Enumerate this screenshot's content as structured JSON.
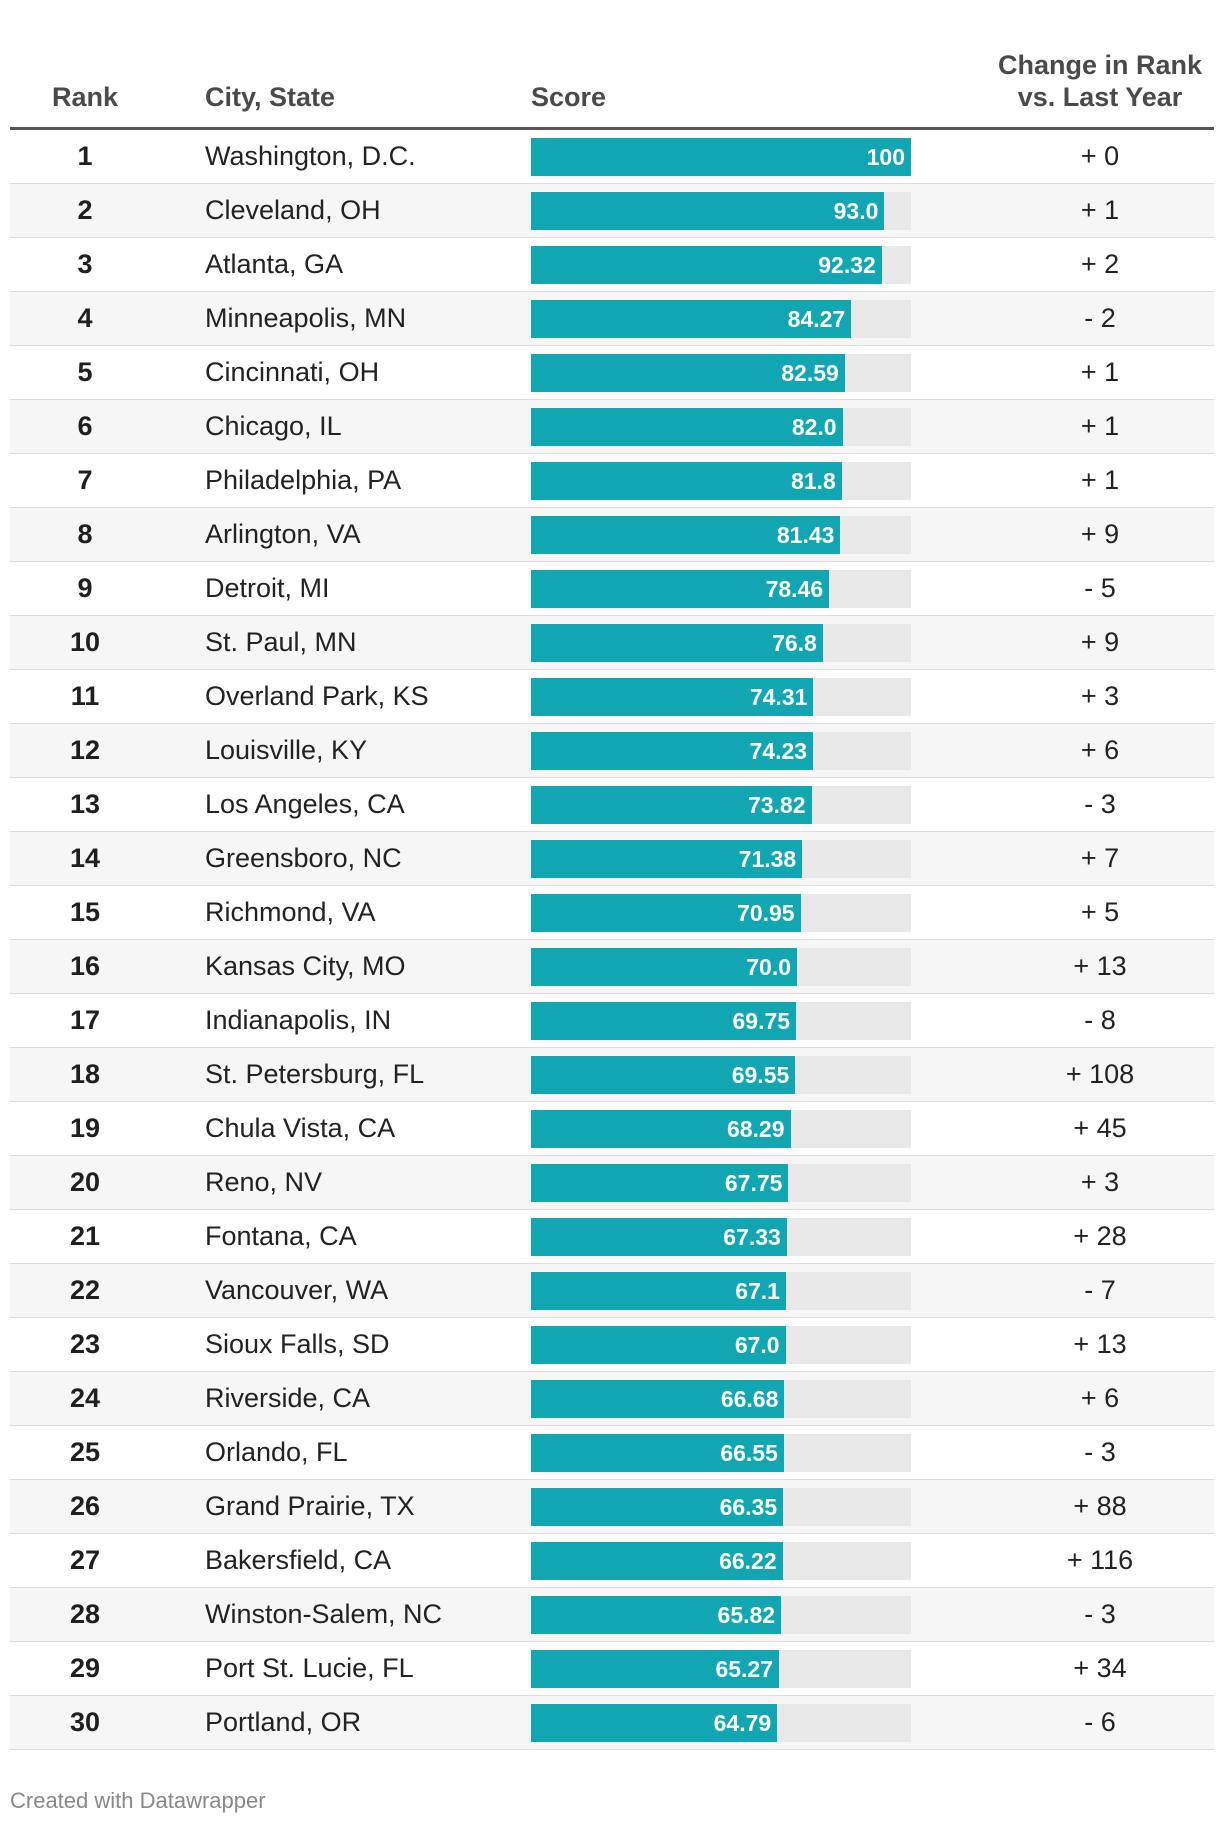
{
  "chart_data": {
    "type": "table",
    "headers": {
      "rank": "Rank",
      "city": "City, State",
      "score": "Score",
      "change": "Change in Rank\nvs. Last Year"
    },
    "score_max": 100,
    "bar_color": "#12a5b2",
    "track_color": "#e8e8e8",
    "rows": [
      {
        "rank": "1",
        "city": "Washington, D.C.",
        "score": 100,
        "score_label": "100",
        "change": "+ 0"
      },
      {
        "rank": "2",
        "city": "Cleveland, OH",
        "score": 93.0,
        "score_label": "93.0",
        "change": "+ 1"
      },
      {
        "rank": "3",
        "city": "Atlanta, GA",
        "score": 92.32,
        "score_label": "92.32",
        "change": "+ 2"
      },
      {
        "rank": "4",
        "city": "Minneapolis, MN",
        "score": 84.27,
        "score_label": "84.27",
        "change": "- 2"
      },
      {
        "rank": "5",
        "city": "Cincinnati, OH",
        "score": 82.59,
        "score_label": "82.59",
        "change": "+ 1"
      },
      {
        "rank": "6",
        "city": "Chicago, IL",
        "score": 82.0,
        "score_label": "82.0",
        "change": "+ 1"
      },
      {
        "rank": "7",
        "city": "Philadelphia, PA",
        "score": 81.8,
        "score_label": "81.8",
        "change": "+ 1"
      },
      {
        "rank": "8",
        "city": "Arlington, VA",
        "score": 81.43,
        "score_label": "81.43",
        "change": "+ 9"
      },
      {
        "rank": "9",
        "city": "Detroit, MI",
        "score": 78.46,
        "score_label": "78.46",
        "change": "- 5"
      },
      {
        "rank": "10",
        "city": "St. Paul, MN",
        "score": 76.8,
        "score_label": "76.8",
        "change": "+ 9"
      },
      {
        "rank": "11",
        "city": "Overland Park, KS",
        "score": 74.31,
        "score_label": "74.31",
        "change": "+ 3"
      },
      {
        "rank": "12",
        "city": "Louisville, KY",
        "score": 74.23,
        "score_label": "74.23",
        "change": "+ 6"
      },
      {
        "rank": "13",
        "city": "Los Angeles, CA",
        "score": 73.82,
        "score_label": "73.82",
        "change": "- 3"
      },
      {
        "rank": "14",
        "city": "Greensboro, NC",
        "score": 71.38,
        "score_label": "71.38",
        "change": "+ 7"
      },
      {
        "rank": "15",
        "city": "Richmond, VA",
        "score": 70.95,
        "score_label": "70.95",
        "change": "+ 5"
      },
      {
        "rank": "16",
        "city": "Kansas City, MO",
        "score": 70.0,
        "score_label": "70.0",
        "change": "+ 13"
      },
      {
        "rank": "17",
        "city": "Indianapolis, IN",
        "score": 69.75,
        "score_label": "69.75",
        "change": "- 8"
      },
      {
        "rank": "18",
        "city": "St. Petersburg, FL",
        "score": 69.55,
        "score_label": "69.55",
        "change": "+ 108"
      },
      {
        "rank": "19",
        "city": "Chula Vista, CA",
        "score": 68.29,
        "score_label": "68.29",
        "change": "+ 45"
      },
      {
        "rank": "20",
        "city": "Reno, NV",
        "score": 67.75,
        "score_label": "67.75",
        "change": "+ 3"
      },
      {
        "rank": "21",
        "city": "Fontana, CA",
        "score": 67.33,
        "score_label": "67.33",
        "change": "+ 28"
      },
      {
        "rank": "22",
        "city": "Vancouver, WA",
        "score": 67.1,
        "score_label": "67.1",
        "change": "- 7"
      },
      {
        "rank": "23",
        "city": "Sioux Falls, SD",
        "score": 67.0,
        "score_label": "67.0",
        "change": "+ 13"
      },
      {
        "rank": "24",
        "city": "Riverside, CA",
        "score": 66.68,
        "score_label": "66.68",
        "change": "+ 6"
      },
      {
        "rank": "25",
        "city": "Orlando, FL",
        "score": 66.55,
        "score_label": "66.55",
        "change": "- 3"
      },
      {
        "rank": "26",
        "city": "Grand Prairie, TX",
        "score": 66.35,
        "score_label": "66.35",
        "change": "+ 88"
      },
      {
        "rank": "27",
        "city": "Bakersfield, CA",
        "score": 66.22,
        "score_label": "66.22",
        "change": "+ 116"
      },
      {
        "rank": "28",
        "city": "Winston-Salem, NC",
        "score": 65.82,
        "score_label": "65.82",
        "change": "- 3"
      },
      {
        "rank": "29",
        "city": "Port St. Lucie, FL",
        "score": 65.27,
        "score_label": "65.27",
        "change": "+ 34"
      },
      {
        "rank": "30",
        "city": "Portland, OR",
        "score": 64.79,
        "score_label": "64.79",
        "change": "- 6"
      }
    ]
  },
  "footer": {
    "credit": "Created with Datawrapper"
  }
}
